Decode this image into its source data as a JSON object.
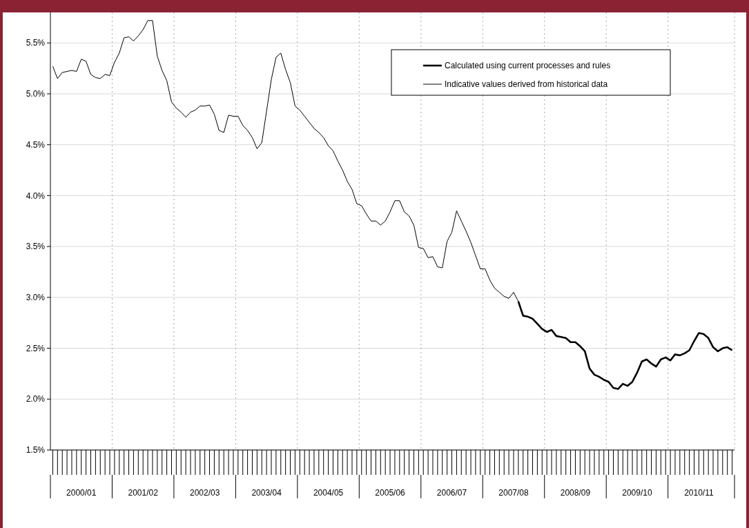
{
  "chart_data": {
    "type": "line",
    "ylim": [
      1.5,
      5.8
    ],
    "categories": [
      null,
      null,
      null,
      null,
      null,
      null,
      "2000/01",
      null,
      null,
      null,
      null,
      null,
      null,
      null,
      null,
      null,
      null,
      null,
      null,
      "2001/02",
      null,
      null,
      null,
      null,
      null,
      null,
      null,
      null,
      null,
      null,
      null,
      null,
      "2002/03",
      null,
      null,
      null,
      null,
      null,
      null,
      null,
      null,
      null,
      null,
      null,
      null,
      "2003/04",
      null,
      null,
      null,
      null,
      null,
      null,
      null,
      null,
      null,
      null,
      null,
      null,
      "2004/05",
      null,
      null,
      null,
      null,
      null,
      null,
      null,
      null,
      null,
      null,
      null,
      null,
      "2005/06",
      null,
      null,
      null,
      null,
      null,
      null,
      null,
      null,
      null,
      null,
      null,
      null,
      "2006/07",
      null,
      null,
      null,
      null,
      null,
      null,
      null,
      null,
      null,
      null,
      null,
      null,
      "2007/08",
      null,
      null,
      null,
      null,
      null,
      null,
      null,
      null,
      null,
      null,
      null,
      null,
      "2008/09",
      null,
      null,
      null,
      null,
      null,
      null,
      null,
      null,
      null,
      null,
      null,
      null,
      "2009/10",
      null,
      null,
      null,
      null,
      null,
      null,
      null,
      null,
      null,
      null,
      null,
      null,
      "2010/11",
      null,
      null,
      null,
      null,
      null,
      null,
      null
    ],
    "yticks": [
      {
        "value": 1.5,
        "label": "1.5%"
      },
      {
        "value": 2.0,
        "label": "2.0%"
      },
      {
        "value": 2.5,
        "label": "2.5%"
      },
      {
        "value": 3.0,
        "label": "3.0%"
      },
      {
        "value": 3.5,
        "label": "3.5%"
      },
      {
        "value": 4.0,
        "label": "4.0%"
      },
      {
        "value": 4.5,
        "label": "4.5%"
      },
      {
        "value": 5.0,
        "label": "5.0%"
      },
      {
        "value": 5.5,
        "label": "5.5%"
      }
    ],
    "grid": true,
    "legend": "top right",
    "marker": "none",
    "line_style": "solid",
    "series": [
      {
        "name": "Calculated using current processes and rules",
        "color": "#000000",
        "values": [
          null,
          null,
          null,
          null,
          null,
          null,
          null,
          null,
          null,
          null,
          null,
          null,
          null,
          null,
          null,
          null,
          null,
          null,
          null,
          null,
          null,
          null,
          null,
          null,
          null,
          null,
          null,
          null,
          null,
          null,
          null,
          null,
          null,
          null,
          null,
          null,
          null,
          null,
          null,
          null,
          null,
          null,
          null,
          null,
          null,
          null,
          null,
          null,
          null,
          null,
          null,
          null,
          null,
          null,
          null,
          null,
          null,
          null,
          null,
          null,
          null,
          null,
          null,
          null,
          null,
          null,
          null,
          null,
          null,
          null,
          null,
          null,
          null,
          null,
          null,
          null,
          null,
          null,
          null,
          null,
          null,
          null,
          null,
          null,
          null,
          null,
          null,
          null,
          null,
          null,
          null,
          null,
          null,
          null,
          null,
          null,
          null,
          null,
          2.96,
          2.82,
          2.81,
          2.79,
          2.74,
          2.69,
          2.66,
          2.68,
          2.62,
          2.61,
          2.6,
          2.56,
          2.56,
          2.52,
          2.47,
          2.3,
          2.24,
          2.22,
          2.19,
          2.17,
          2.11,
          2.1,
          2.15,
          2.13,
          2.17,
          2.26,
          2.37,
          2.39,
          2.35,
          2.32,
          2.39,
          2.41,
          2.38,
          2.44,
          2.43,
          2.45,
          2.48,
          2.57,
          2.65,
          2.64,
          2.6,
          2.51,
          2.47,
          2.5,
          2.51,
          2.48
        ]
      },
      {
        "name": "Indicative values derived from historical data",
        "color": "#000000",
        "values": [
          5.27,
          5.15,
          5.21,
          5.22,
          5.23,
          5.22,
          5.34,
          5.32,
          5.19,
          5.16,
          5.15,
          5.19,
          5.18,
          5.31,
          5.4,
          5.55,
          5.56,
          5.52,
          5.57,
          5.63,
          5.72,
          5.72,
          5.37,
          5.23,
          5.13,
          4.92,
          4.86,
          4.82,
          4.77,
          4.82,
          4.84,
          4.88,
          4.88,
          4.89,
          4.8,
          4.64,
          4.62,
          4.79,
          4.78,
          4.78,
          4.69,
          4.64,
          4.57,
          4.46,
          4.52,
          4.83,
          5.14,
          5.36,
          5.4,
          5.24,
          5.11,
          4.88,
          4.84,
          4.78,
          4.72,
          4.66,
          4.62,
          4.57,
          4.49,
          4.44,
          4.34,
          4.25,
          4.14,
          4.06,
          3.92,
          3.9,
          3.82,
          3.75,
          3.75,
          3.71,
          3.75,
          3.84,
          3.95,
          3.95,
          3.84,
          3.8,
          3.71,
          3.49,
          3.48,
          3.39,
          3.4,
          3.3,
          3.29,
          3.55,
          3.64,
          3.85,
          3.75,
          3.65,
          3.54,
          3.41,
          3.28,
          3.28,
          3.17,
          3.09,
          3.05,
          3.01,
          2.99,
          3.05,
          2.96,
          null,
          null,
          null,
          null,
          null,
          null,
          null,
          null,
          null,
          null,
          null,
          null,
          null,
          null,
          null,
          null,
          null,
          null,
          null,
          null,
          null,
          null,
          null,
          null,
          null,
          null,
          null,
          null,
          null,
          null,
          null,
          null,
          null,
          null,
          null,
          null,
          null,
          null,
          null,
          null,
          null,
          null,
          null,
          null,
          null
        ]
      }
    ]
  }
}
